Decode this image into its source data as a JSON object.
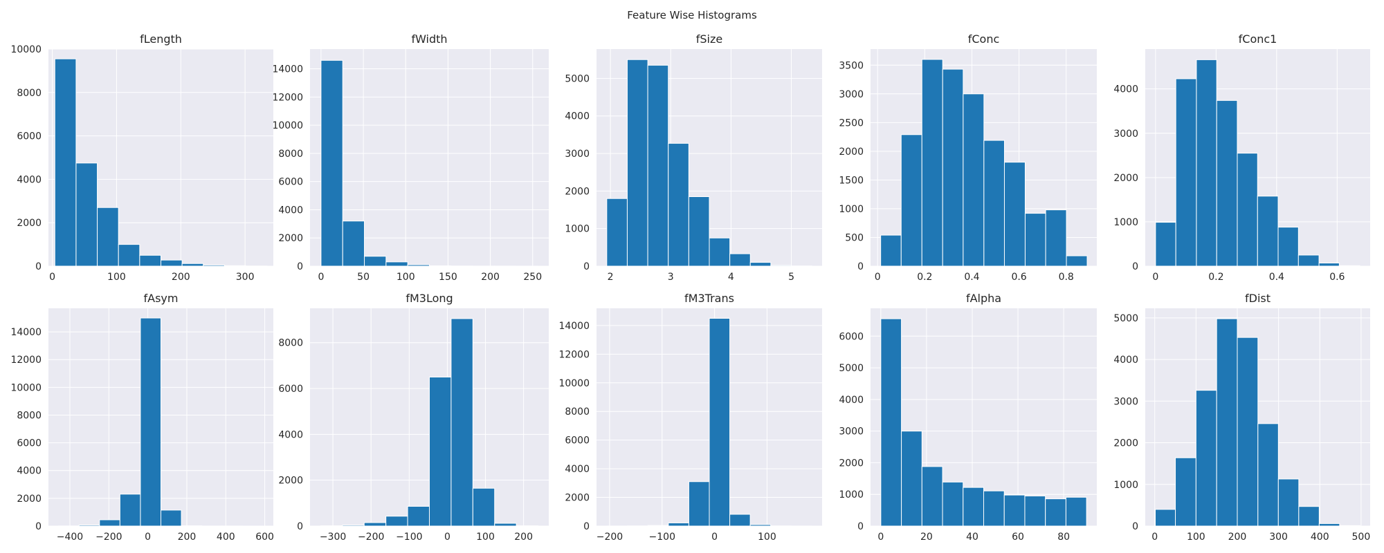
{
  "figure": {
    "title": "Feature Wise Histograms",
    "bar_color": "#1f77b4",
    "axes_bg": "#eaeaf2",
    "grid_color": "#ffffff"
  },
  "chart_data": [
    {
      "type": "bar",
      "title": "fLength",
      "bin_edges": [
        4,
        37,
        70,
        103,
        136,
        169,
        202,
        235,
        268,
        301,
        334
      ],
      "values": [
        9550,
        4750,
        2700,
        1000,
        500,
        280,
        120,
        50,
        20,
        5
      ],
      "xticks": [
        0,
        100,
        200,
        300
      ],
      "yticks": [
        0,
        2000,
        4000,
        6000,
        8000,
        10000
      ],
      "xlim": [
        -6,
        344
      ],
      "ylim": [
        0,
        10000
      ]
    },
    {
      "type": "bar",
      "title": "fWidth",
      "bin_edges": [
        0,
        25.6,
        51.2,
        76.8,
        102.4,
        128,
        153.6,
        179.2,
        204.8,
        230.4,
        256
      ],
      "values": [
        14600,
        3200,
        700,
        300,
        100,
        20,
        10,
        5,
        3,
        2
      ],
      "xticks": [
        0,
        50,
        100,
        150,
        200,
        250
      ],
      "yticks": [
        0,
        2000,
        4000,
        6000,
        8000,
        10000,
        12000,
        14000
      ],
      "xlim": [
        -13,
        269
      ],
      "ylim": [
        0,
        15400
      ]
    },
    {
      "type": "bar",
      "title": "fSize",
      "bin_edges": [
        1.94,
        2.28,
        2.62,
        2.96,
        3.3,
        3.64,
        3.98,
        4.32,
        4.66,
        5.0,
        5.34
      ],
      "values": [
        1800,
        5500,
        5350,
        3270,
        1850,
        750,
        330,
        100,
        20,
        5
      ],
      "xticks": [
        2,
        3,
        4,
        5
      ],
      "yticks": [
        0,
        1000,
        2000,
        3000,
        4000,
        5000
      ],
      "xlim": [
        1.77,
        5.51
      ],
      "ylim": [
        0,
        5780
      ]
    },
    {
      "type": "bar",
      "title": "fConc",
      "bin_edges": [
        0.013,
        0.1,
        0.188,
        0.276,
        0.363,
        0.451,
        0.538,
        0.626,
        0.713,
        0.801,
        0.889
      ],
      "values": [
        540,
        2290,
        3600,
        3430,
        3000,
        2190,
        1810,
        920,
        980,
        180
      ],
      "xticks": [
        0.0,
        0.2,
        0.4,
        0.6,
        0.8
      ],
      "yticks": [
        0,
        500,
        1000,
        1500,
        2000,
        2500,
        3000,
        3500
      ],
      "xlim": [
        -0.03,
        0.93
      ],
      "ylim": [
        0,
        3780
      ]
    },
    {
      "type": "bar",
      "title": "fConc1",
      "bin_edges": [
        0,
        0.067,
        0.135,
        0.202,
        0.27,
        0.337,
        0.405,
        0.472,
        0.54,
        0.607,
        0.675
      ],
      "values": [
        990,
        4230,
        4660,
        3740,
        2550,
        1580,
        880,
        250,
        70,
        10
      ],
      "xticks": [
        0.0,
        0.2,
        0.4,
        0.6
      ],
      "yticks": [
        0,
        1000,
        2000,
        3000,
        4000
      ],
      "xlim": [
        -0.034,
        0.709
      ],
      "ylim": [
        0,
        4900
      ]
    },
    {
      "type": "bar",
      "title": "fAsym",
      "bin_edges": [
        -458,
        -353,
        -248,
        -143,
        -38,
        67,
        172,
        277,
        382,
        487,
        592
      ],
      "values": [
        10,
        70,
        450,
        2300,
        15000,
        1150,
        20,
        5,
        3,
        2
      ],
      "xticks": [
        -400,
        -200,
        0,
        200,
        400,
        600
      ],
      "yticks": [
        0,
        2000,
        4000,
        6000,
        8000,
        10000,
        12000,
        14000
      ],
      "xlim": [
        -510,
        644
      ],
      "ylim": [
        0,
        15700
      ]
    },
    {
      "type": "bar",
      "title": "fM3Long",
      "bin_edges": [
        -332,
        -275,
        -218,
        -161,
        -104,
        -47,
        10,
        67,
        124,
        181,
        238
      ],
      "values": [
        10,
        40,
        150,
        430,
        860,
        6500,
        9050,
        1650,
        120,
        10
      ],
      "xticks": [
        -300,
        -200,
        -100,
        0,
        100,
        200
      ],
      "yticks": [
        0,
        2000,
        4000,
        6000,
        8000
      ],
      "xlim": [
        -360,
        266
      ],
      "ylim": [
        0,
        9500
      ]
    },
    {
      "type": "bar",
      "title": "fM3Trans",
      "bin_edges": [
        -205,
        -166,
        -127,
        -88,
        -49,
        -10,
        29,
        68,
        107,
        146,
        185
      ],
      "values": [
        5,
        10,
        40,
        220,
        3100,
        14500,
        820,
        100,
        10,
        5
      ],
      "xticks": [
        -200,
        -100,
        0,
        100
      ],
      "yticks": [
        0,
        2000,
        4000,
        6000,
        8000,
        10000,
        12000,
        14000
      ],
      "xlim": [
        -225,
        205
      ],
      "ylim": [
        0,
        15200
      ]
    },
    {
      "type": "bar",
      "title": "fAlpha",
      "bin_edges": [
        0,
        9,
        18,
        27,
        36,
        45,
        54,
        63,
        72,
        81,
        90
      ],
      "values": [
        6550,
        3000,
        1880,
        1390,
        1220,
        1110,
        980,
        950,
        860,
        910
      ],
      "xticks": [
        0,
        20,
        40,
        60,
        80
      ],
      "yticks": [
        0,
        1000,
        2000,
        3000,
        4000,
        5000,
        6000
      ],
      "xlim": [
        -4.5,
        94.5
      ],
      "ylim": [
        0,
        6880
      ]
    },
    {
      "type": "bar",
      "title": "fDist",
      "bin_edges": [
        1.3,
        50,
        100,
        150,
        200,
        250,
        299.5,
        349,
        398.5,
        448,
        497.5
      ],
      "values": [
        400,
        1640,
        3260,
        4980,
        4530,
        2460,
        1130,
        470,
        60,
        10
      ],
      "xticks": [
        0,
        100,
        200,
        300,
        400,
        500
      ],
      "yticks": [
        0,
        1000,
        2000,
        3000,
        4000,
        5000
      ],
      "xlim": [
        -23,
        522
      ],
      "ylim": [
        0,
        5230
      ]
    }
  ]
}
